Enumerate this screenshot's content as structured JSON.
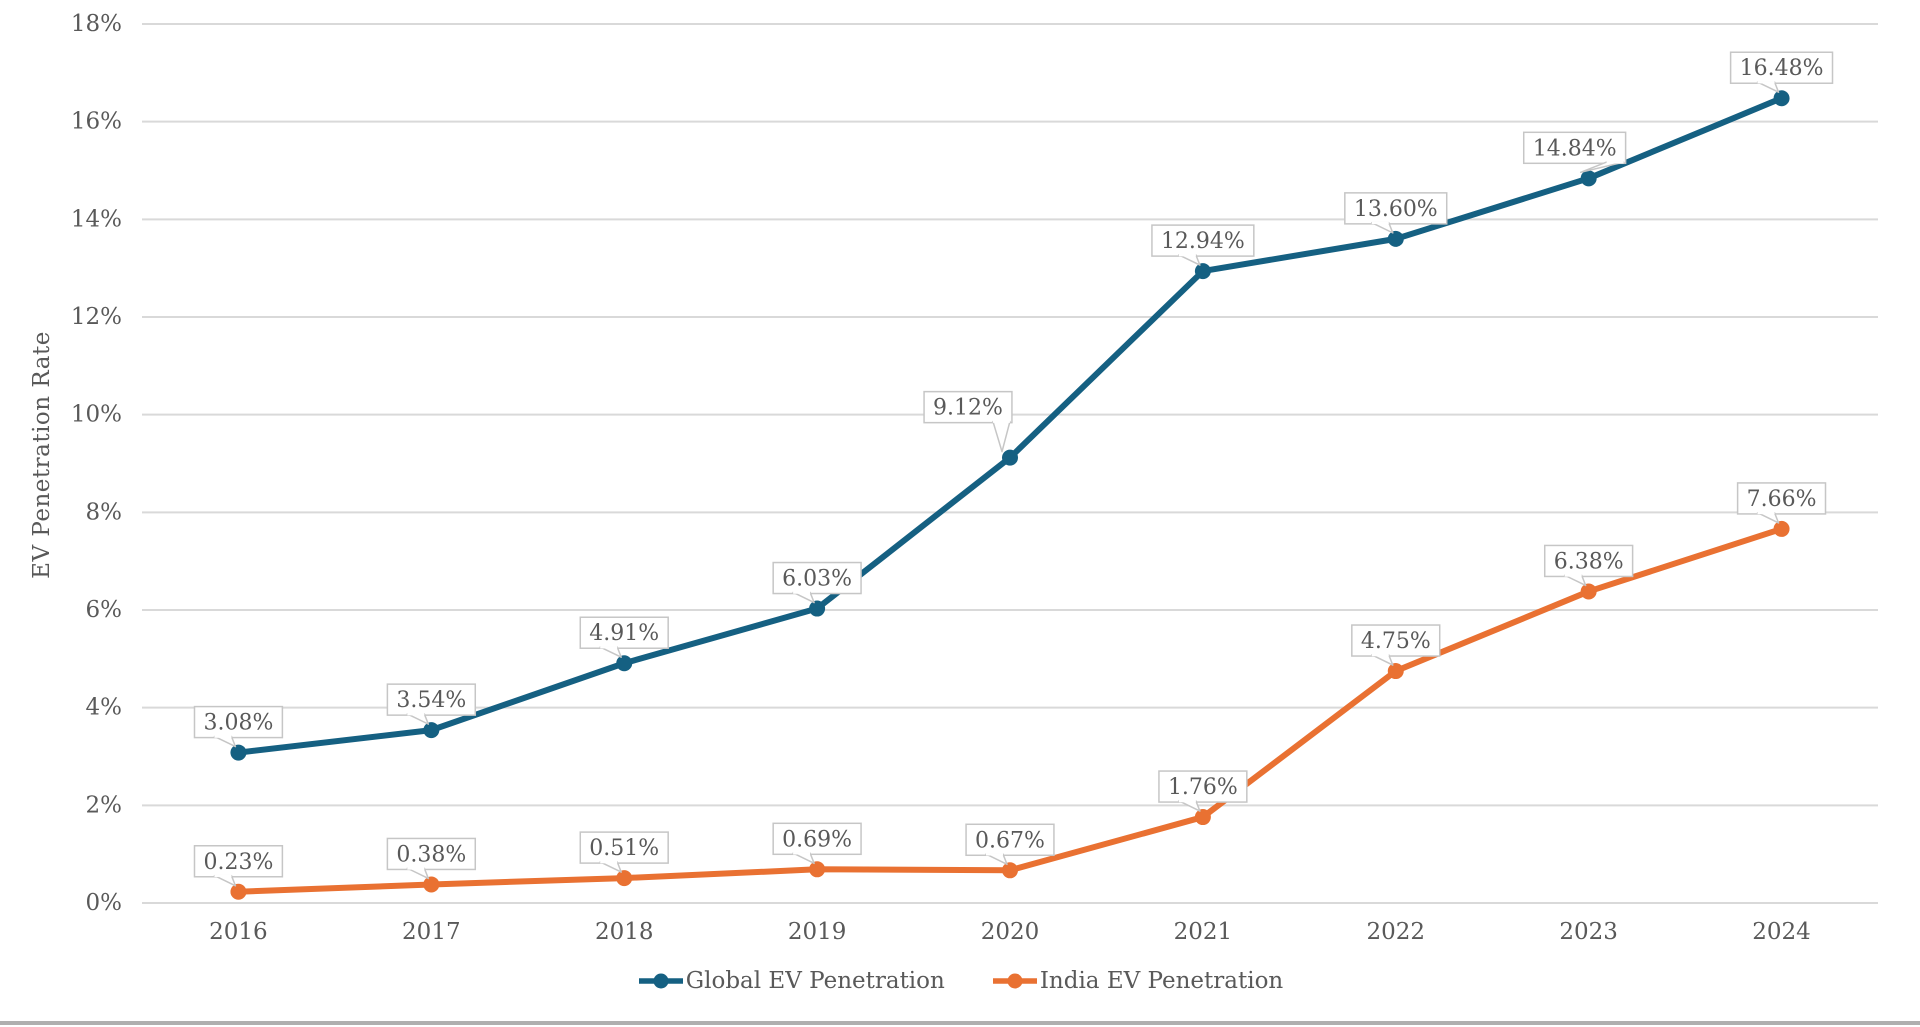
{
  "chart_data": {
    "type": "line",
    "title": "",
    "xlabel": "",
    "ylabel": "EV Penetration Rate",
    "categories": [
      "2016",
      "2017",
      "2018",
      "2019",
      "2020",
      "2021",
      "2022",
      "2023",
      "2024"
    ],
    "series": [
      {
        "name": "Global EV Penetration",
        "color": "#156082",
        "values": [
          3.08,
          3.54,
          4.91,
          6.03,
          9.12,
          12.94,
          13.6,
          14.84,
          16.48
        ],
        "point_labels": [
          "3.08%",
          "3.54%",
          "4.91%",
          "6.03%",
          "9.12%",
          "12.94%",
          "13.60%",
          "14.84%",
          "16.48%"
        ]
      },
      {
        "name": "India EV Penetration",
        "color": "#E97132",
        "values": [
          0.23,
          0.38,
          0.51,
          0.69,
          0.67,
          1.76,
          4.75,
          6.38,
          7.66
        ],
        "point_labels": [
          "0.23%",
          "0.38%",
          "0.51%",
          "0.69%",
          "0.67%",
          "1.76%",
          "4.75%",
          "6.38%",
          "7.66%"
        ]
      }
    ],
    "y_axis": {
      "min": 0,
      "max": 18,
      "step": 2,
      "tick_labels": [
        "0%",
        "2%",
        "4%",
        "6%",
        "8%",
        "10%",
        "12%",
        "14%",
        "16%",
        "18%"
      ]
    },
    "grid": true,
    "legend_position": "bottom",
    "style_colors": {
      "text": "#595959",
      "gridline": "#D9D9D9",
      "label_box_border": "#C6C6C6",
      "label_box_fill": "#FFFFFF",
      "background": "#FFFFFF",
      "bottom_bar": "#AFAFAF"
    }
  }
}
